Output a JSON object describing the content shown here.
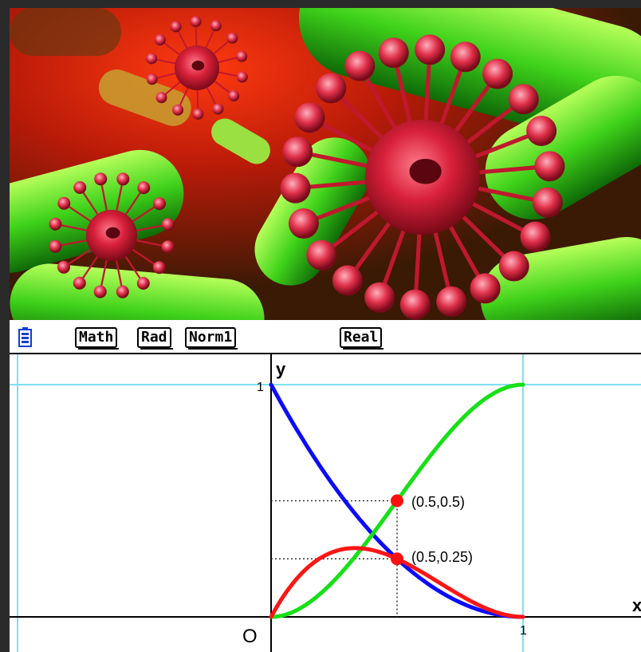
{
  "status_bar": {
    "mode_math": "Math",
    "mode_angle": "Rad",
    "mode_display": "Norm1",
    "mode_complex": "Real",
    "battery_icon": "battery-icon"
  },
  "graph": {
    "y_axis_label": "y",
    "x_axis_label": "x",
    "origin_label": "O",
    "y_tick_label": "1",
    "x_tick_label": "1",
    "point_labels": [
      "(0.5,0.5)",
      "(0.5,0.25)"
    ],
    "colors": {
      "blue": "#0b0bff",
      "green": "#16e016",
      "red": "#ff1515",
      "grid": "#7fe0f0"
    }
  },
  "chart_data": {
    "type": "line",
    "xlim": [
      0,
      1
    ],
    "ylim": [
      0,
      1
    ],
    "series": [
      {
        "color": "#0b0bff",
        "x": [
          0,
          0.1,
          0.2,
          0.3,
          0.4,
          0.5,
          0.6,
          0.7,
          0.8,
          0.9,
          1.0
        ],
        "y": [
          1,
          0.81,
          0.64,
          0.49,
          0.36,
          0.25,
          0.16,
          0.09,
          0.04,
          0.01,
          0
        ]
      },
      {
        "color": "#16e016",
        "x": [
          0,
          0.1,
          0.2,
          0.3,
          0.4,
          0.5,
          0.6,
          0.7,
          0.8,
          0.9,
          1.0
        ],
        "y": [
          0,
          0.028,
          0.104,
          0.216,
          0.352,
          0.5,
          0.648,
          0.784,
          0.896,
          0.972,
          1
        ]
      },
      {
        "color": "#ff1515",
        "x": [
          0,
          0.1,
          0.2,
          0.3,
          0.4,
          0.5,
          0.6,
          0.7,
          0.8,
          0.9,
          1.0
        ],
        "y": [
          0,
          0.162,
          0.256,
          0.294,
          0.288,
          0.25,
          0.192,
          0.126,
          0.064,
          0.018,
          0
        ]
      }
    ],
    "points": [
      {
        "x": 0.5,
        "y": 0.5
      },
      {
        "x": 0.5,
        "y": 0.25
      }
    ],
    "grid": false
  }
}
